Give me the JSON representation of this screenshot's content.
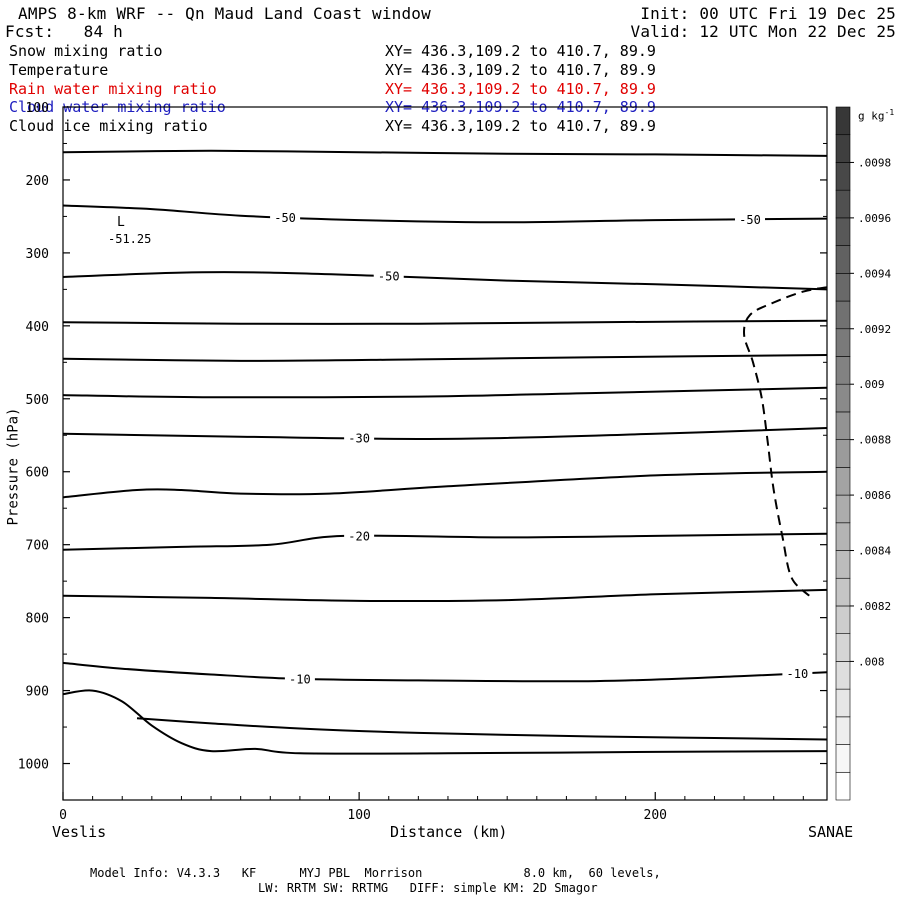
{
  "header": {
    "title": "AMPS 8-km WRF -- Qn Maud Land Coast window",
    "fcst": "Fcst:   84 h",
    "init": "Init: 00 UTC Fri 19 Dec 25",
    "valid": "Valid: 12 UTC Mon 22 Dec 25"
  },
  "fields": [
    {
      "name": "Snow mixing ratio",
      "xy": "XY= 436.3,109.2 to 410.7, 89.9",
      "color": "#000000"
    },
    {
      "name": "Temperature",
      "xy": "XY= 436.3,109.2 to 410.7, 89.9",
      "color": "#000000"
    },
    {
      "name": "Rain water mixing ratio",
      "xy": "XY= 436.3,109.2 to 410.7, 89.9",
      "color": "#e00000"
    },
    {
      "name": "Cloud water mixing ratio",
      "xy": "XY= 436.3,109.2 to 410.7, 89.9",
      "color": "#2020c0"
    },
    {
      "name": "Cloud ice mixing ratio",
      "xy": "XY= 436.3,109.2 to 410.7, 89.9",
      "color": "#000000"
    }
  ],
  "footer": {
    "line1": "Model Info: V4.3.3   KF      MYJ PBL  Morrison              8.0 km,  60 levels,",
    "line2": "LW: RRTM SW: RRTMG   DIFF: simple KM: 2D Smagor"
  },
  "chart_data": {
    "type": "line",
    "xlabel": "Distance (km)",
    "ylabel": "Pressure (hPa)",
    "xlim": [
      0,
      258
    ],
    "ylim": [
      1050,
      100
    ],
    "x_ticks": [
      0,
      100,
      200
    ],
    "y_ticks": [
      100,
      200,
      300,
      400,
      500,
      600,
      700,
      800,
      900,
      1000
    ],
    "x_end_labels": {
      "left": "Veslis",
      "right": "SANAE"
    },
    "low_marker": {
      "label": "L",
      "value": "-51.25",
      "x": 20,
      "p": 235
    },
    "colorbar": {
      "unit": "g kg",
      "unit_exp": "-1",
      "min": 0.0075,
      "max": 0.01,
      "step": 0.0001,
      "labels": [
        ".008",
        ".0082",
        ".0084",
        ".0086",
        ".0088",
        ".009",
        ".0092",
        ".0094",
        ".0096",
        ".0098"
      ],
      "label_values": [
        0.008,
        0.0082,
        0.0084,
        0.0086,
        0.0088,
        0.009,
        0.0092,
        0.0094,
        0.0096,
        0.0098
      ]
    },
    "temperature_contours": [
      {
        "points": [
          [
            0,
            162
          ],
          [
            50,
            160
          ],
          [
            100,
            162
          ],
          [
            150,
            164
          ],
          [
            200,
            165
          ],
          [
            258,
            167
          ]
        ]
      },
      {
        "points": [
          [
            0,
            235
          ],
          [
            30,
            240
          ],
          [
            60,
            249
          ],
          [
            100,
            255
          ],
          [
            150,
            258
          ],
          [
            200,
            255
          ],
          [
            258,
            253
          ]
        ],
        "labels": [
          {
            "x": 75,
            "text": "-50"
          },
          {
            "x": 232,
            "text": "-50"
          }
        ]
      },
      {
        "points": [
          [
            0,
            333
          ],
          [
            40,
            327
          ],
          [
            70,
            327
          ],
          [
            110,
            332
          ],
          [
            150,
            338
          ],
          [
            200,
            343
          ],
          [
            258,
            350
          ]
        ],
        "labels": [
          {
            "x": 110,
            "text": "-50"
          }
        ]
      },
      {
        "points": [
          [
            0,
            395
          ],
          [
            60,
            397
          ],
          [
            120,
            397
          ],
          [
            180,
            395
          ],
          [
            258,
            393
          ]
        ]
      },
      {
        "points": [
          [
            0,
            445
          ],
          [
            60,
            448
          ],
          [
            120,
            446
          ],
          [
            180,
            443
          ],
          [
            258,
            440
          ]
        ]
      },
      {
        "points": [
          [
            0,
            495
          ],
          [
            50,
            498
          ],
          [
            120,
            497
          ],
          [
            180,
            492
          ],
          [
            258,
            485
          ]
        ]
      },
      {
        "points": [
          [
            0,
            548
          ],
          [
            60,
            552
          ],
          [
            130,
            555
          ],
          [
            200,
            548
          ],
          [
            258,
            540
          ]
        ],
        "labels": [
          {
            "x": 100,
            "text": "-30"
          }
        ]
      },
      {
        "points": [
          [
            0,
            635
          ],
          [
            25,
            625
          ],
          [
            40,
            625
          ],
          [
            60,
            630
          ],
          [
            90,
            630
          ],
          [
            130,
            620
          ],
          [
            200,
            605
          ],
          [
            258,
            600
          ]
        ]
      },
      {
        "points": [
          [
            0,
            707
          ],
          [
            40,
            703
          ],
          [
            70,
            700
          ],
          [
            95,
            688
          ],
          [
            150,
            690
          ],
          [
            200,
            688
          ],
          [
            258,
            685
          ]
        ],
        "labels": [
          {
            "x": 100,
            "text": "-20"
          }
        ]
      },
      {
        "points": [
          [
            0,
            770
          ],
          [
            50,
            773
          ],
          [
            100,
            777
          ],
          [
            150,
            776
          ],
          [
            200,
            768
          ],
          [
            258,
            762
          ]
        ]
      },
      {
        "points": [
          [
            0,
            862
          ],
          [
            20,
            870
          ],
          [
            50,
            878
          ],
          [
            80,
            884
          ],
          [
            120,
            886
          ],
          [
            180,
            887
          ],
          [
            230,
            880
          ],
          [
            258,
            875
          ]
        ],
        "labels": [
          {
            "x": 80,
            "text": "-10"
          },
          {
            "x": 248,
            "text": "-10"
          }
        ]
      },
      {
        "points": [
          [
            25,
            938
          ],
          [
            50,
            945
          ],
          [
            80,
            952
          ],
          [
            120,
            958
          ],
          [
            180,
            963
          ],
          [
            220,
            965
          ],
          [
            258,
            967
          ]
        ]
      },
      {
        "points": [
          [
            0,
            905
          ],
          [
            10,
            900
          ],
          [
            20,
            915
          ],
          [
            30,
            948
          ],
          [
            40,
            972
          ],
          [
            50,
            983
          ],
          [
            65,
            980
          ],
          [
            80,
            986
          ],
          [
            130,
            986
          ],
          [
            200,
            984
          ],
          [
            258,
            983
          ]
        ]
      }
    ],
    "dashed_contour": {
      "points": [
        [
          258,
          347
        ],
        [
          250,
          353
        ],
        [
          240,
          368
        ],
        [
          232,
          385
        ],
        [
          230,
          412
        ],
        [
          233,
          450
        ],
        [
          236,
          500
        ],
        [
          238,
          560
        ],
        [
          240,
          625
        ],
        [
          243,
          690
        ],
        [
          246,
          745
        ],
        [
          252,
          770
        ]
      ]
    }
  }
}
